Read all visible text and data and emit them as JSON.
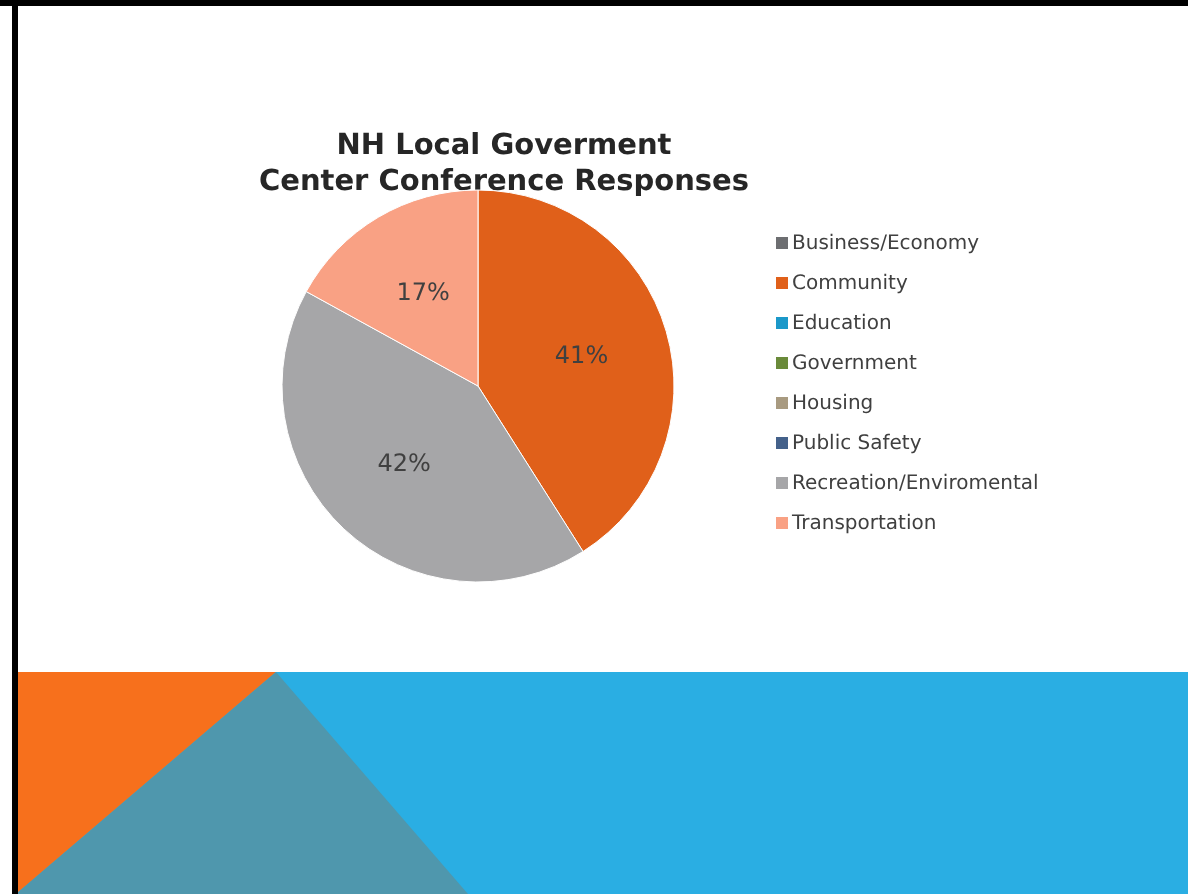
{
  "chart_data": {
    "type": "pie",
    "title": "NH Local Goverment\nCenter Conference Responses",
    "categories": [
      "Business/Economy",
      "Community",
      "Education",
      "Government",
      "Housing",
      "Public Safety",
      "Recreation/Enviromental",
      "Transportation"
    ],
    "values": [
      0,
      41,
      0,
      0,
      0,
      0,
      42,
      17
    ],
    "colors": [
      "#6d6e71",
      "#e0601a",
      "#1b98c9",
      "#6a8a3a",
      "#a89a80",
      "#44618a",
      "#a6a6a8",
      "#f9a184"
    ],
    "value_labels": [
      null,
      "41%",
      null,
      null,
      null,
      null,
      "42%",
      "17%"
    ],
    "legend": "right"
  }
}
